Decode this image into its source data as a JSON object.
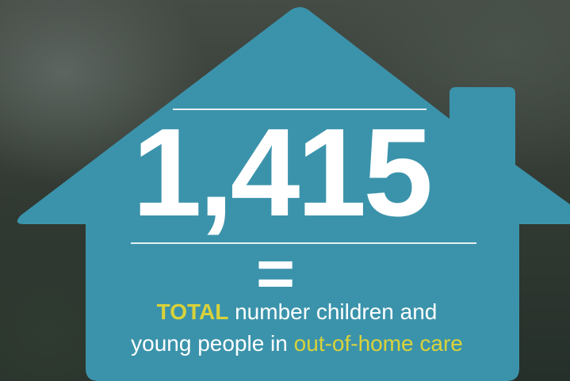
{
  "headline": "1,415",
  "equals": "=",
  "caption": {
    "highlight": "TOTAL",
    "line1": "number children and",
    "line2": "young people in",
    "line2_highlight": "out-of-home care"
  }
}
